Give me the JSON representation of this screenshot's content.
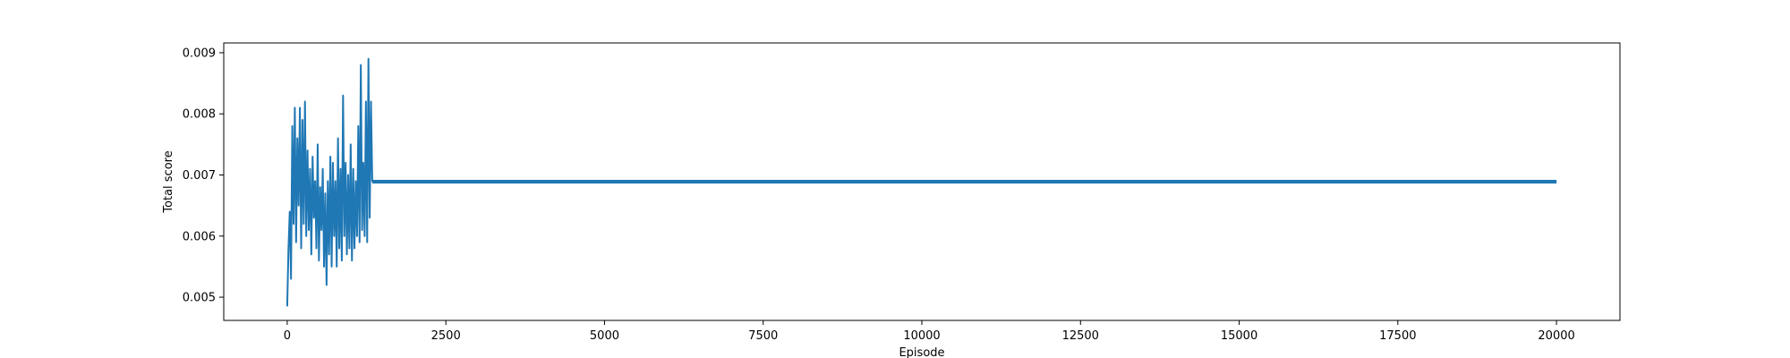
{
  "chart_data": {
    "type": "line",
    "title": "",
    "xlabel": "Episode",
    "ylabel": "Total score",
    "xlim": [
      -1000,
      21000
    ],
    "ylim": [
      0.00462,
      0.00916
    ],
    "x_ticks": [
      0,
      2500,
      5000,
      7500,
      10000,
      12500,
      15000,
      17500,
      20000
    ],
    "x_tick_labels": [
      "0",
      "2500",
      "5000",
      "7500",
      "10000",
      "12500",
      "15000",
      "17500",
      "20000"
    ],
    "y_ticks": [
      0.005,
      0.006,
      0.007,
      0.008,
      0.009
    ],
    "y_tick_labels": [
      "0.005",
      "0.006",
      "0.007",
      "0.008",
      "0.009"
    ],
    "grid": false,
    "legend": "none",
    "series": [
      {
        "color": "#1f77b4",
        "x": [
          0,
          20,
          40,
          60,
          80,
          100,
          120,
          140,
          160,
          180,
          200,
          220,
          240,
          260,
          280,
          300,
          320,
          340,
          360,
          380,
          400,
          420,
          440,
          460,
          480,
          500,
          520,
          540,
          560,
          580,
          600,
          620,
          640,
          660,
          680,
          700,
          720,
          740,
          760,
          780,
          800,
          820,
          840,
          860,
          880,
          900,
          920,
          940,
          960,
          980,
          1000,
          1020,
          1040,
          1060,
          1080,
          1100,
          1120,
          1140,
          1160,
          1180,
          1200,
          1220,
          1240,
          1260,
          1280,
          1300,
          1320,
          1340,
          1400,
          2000,
          3000,
          4000,
          5000,
          6000,
          7000,
          8000,
          9000,
          10000,
          11000,
          12000,
          13000,
          14000,
          15000,
          16000,
          17000,
          18000,
          19000,
          20000
        ],
        "y": [
          0.00485,
          0.0058,
          0.0064,
          0.0053,
          0.0078,
          0.0062,
          0.0081,
          0.0059,
          0.0076,
          0.0065,
          0.0081,
          0.0058,
          0.0079,
          0.0062,
          0.0082,
          0.006,
          0.0074,
          0.0061,
          0.0071,
          0.0057,
          0.0073,
          0.0063,
          0.0069,
          0.0058,
          0.0075,
          0.0056,
          0.0068,
          0.0061,
          0.0071,
          0.0055,
          0.0067,
          0.0052,
          0.0069,
          0.0057,
          0.0073,
          0.0055,
          0.0072,
          0.006,
          0.0069,
          0.0055,
          0.0076,
          0.0058,
          0.0071,
          0.0056,
          0.0083,
          0.006,
          0.0072,
          0.0057,
          0.007,
          0.0058,
          0.0075,
          0.0056,
          0.0071,
          0.0058,
          0.0069,
          0.006,
          0.0078,
          0.0059,
          0.0088,
          0.0061,
          0.0072,
          0.006,
          0.0082,
          0.0059,
          0.0089,
          0.0063,
          0.0082,
          0.0069,
          0.0069,
          0.0069,
          0.0069,
          0.0069,
          0.0069,
          0.0069,
          0.0069,
          0.0069,
          0.0069,
          0.0069,
          0.0069,
          0.0069,
          0.0069,
          0.0069,
          0.0069,
          0.0069,
          0.0069,
          0.0069,
          0.0069,
          0.0069
        ],
        "steady_band": {
          "x_start": 1340,
          "x_end": 20000,
          "y_low": 0.00686,
          "y_high": 0.00692
        }
      }
    ]
  }
}
